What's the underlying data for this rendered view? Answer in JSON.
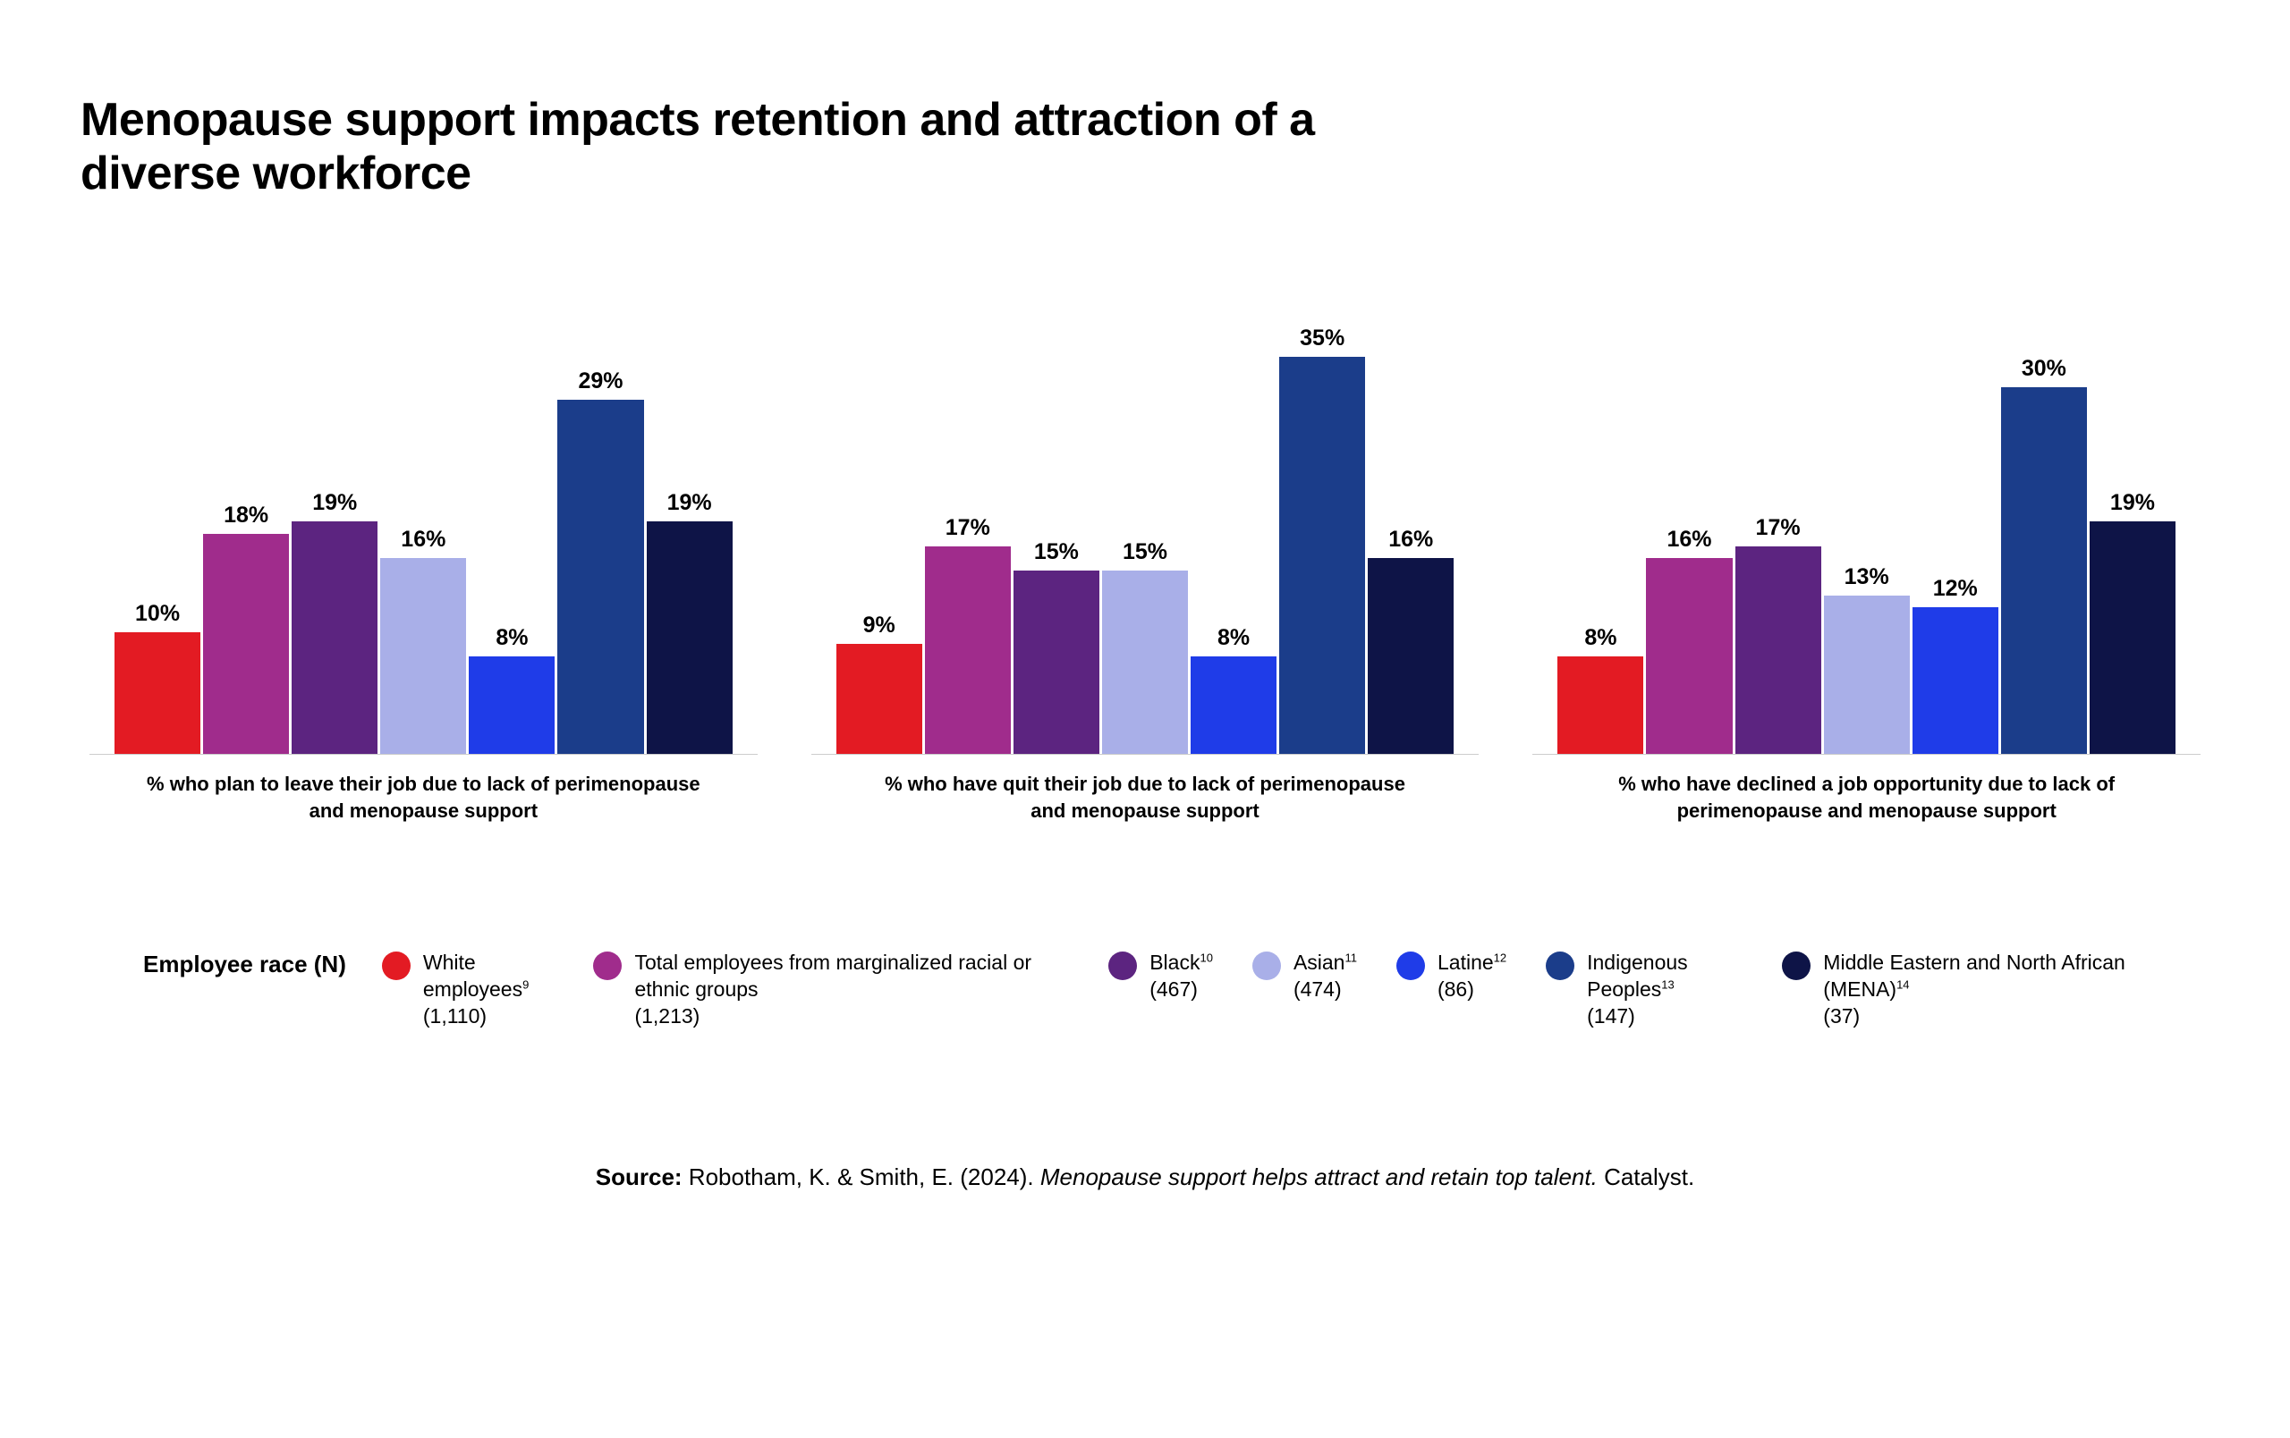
{
  "title": "Menopause support impacts retention and attraction of a diverse workforce",
  "chart": {
    "type": "bar",
    "ymax": 35,
    "bar_colors": [
      "#e31b23",
      "#a02c8c",
      "#5c2480",
      "#a9afe8",
      "#1f3ce8",
      "#1b3d8a",
      "#0e1447"
    ],
    "groups": [
      {
        "values": [
          10,
          18,
          19,
          16,
          8,
          29,
          19
        ],
        "caption": "% who plan to leave their job due to lack of perimenopause and menopause support"
      },
      {
        "values": [
          9,
          17,
          15,
          15,
          8,
          35,
          16
        ],
        "caption": "% who have quit their job due to lack of perimenopause and menopause support"
      },
      {
        "values": [
          8,
          16,
          17,
          13,
          12,
          30,
          19
        ],
        "caption": "% who have declined a job opportunity due to lack of perimenopause and menopause support"
      }
    ]
  },
  "legend": {
    "title": "Employee race (N)",
    "items": [
      {
        "label": "White employees",
        "sup": "9",
        "n": "(1,110)",
        "color": "#e31b23"
      },
      {
        "label": "Total employees from marginalized racial or ethnic groups",
        "sup": "",
        "n": "(1,213)",
        "color": "#a02c8c"
      },
      {
        "label": "Black",
        "sup": "10",
        "n": "(467)",
        "color": "#5c2480"
      },
      {
        "label": "Asian",
        "sup": "11",
        "n": "(474)",
        "color": "#a9afe8"
      },
      {
        "label": "Latine",
        "sup": "12",
        "n": "(86)",
        "color": "#1f3ce8"
      },
      {
        "label": "Indigenous Peoples",
        "sup": "13",
        "n": "(147)",
        "color": "#1b3d8a"
      },
      {
        "label": "Middle Eastern and North African (MENA)",
        "sup": "14",
        "n": "(37)",
        "color": "#0e1447"
      }
    ]
  },
  "source": {
    "prefix": "Source:",
    "authors": " Robotham, K. & Smith, E. (2024). ",
    "title_italic": "Menopause support helps attract and retain top talent.",
    "suffix": " Catalyst."
  }
}
